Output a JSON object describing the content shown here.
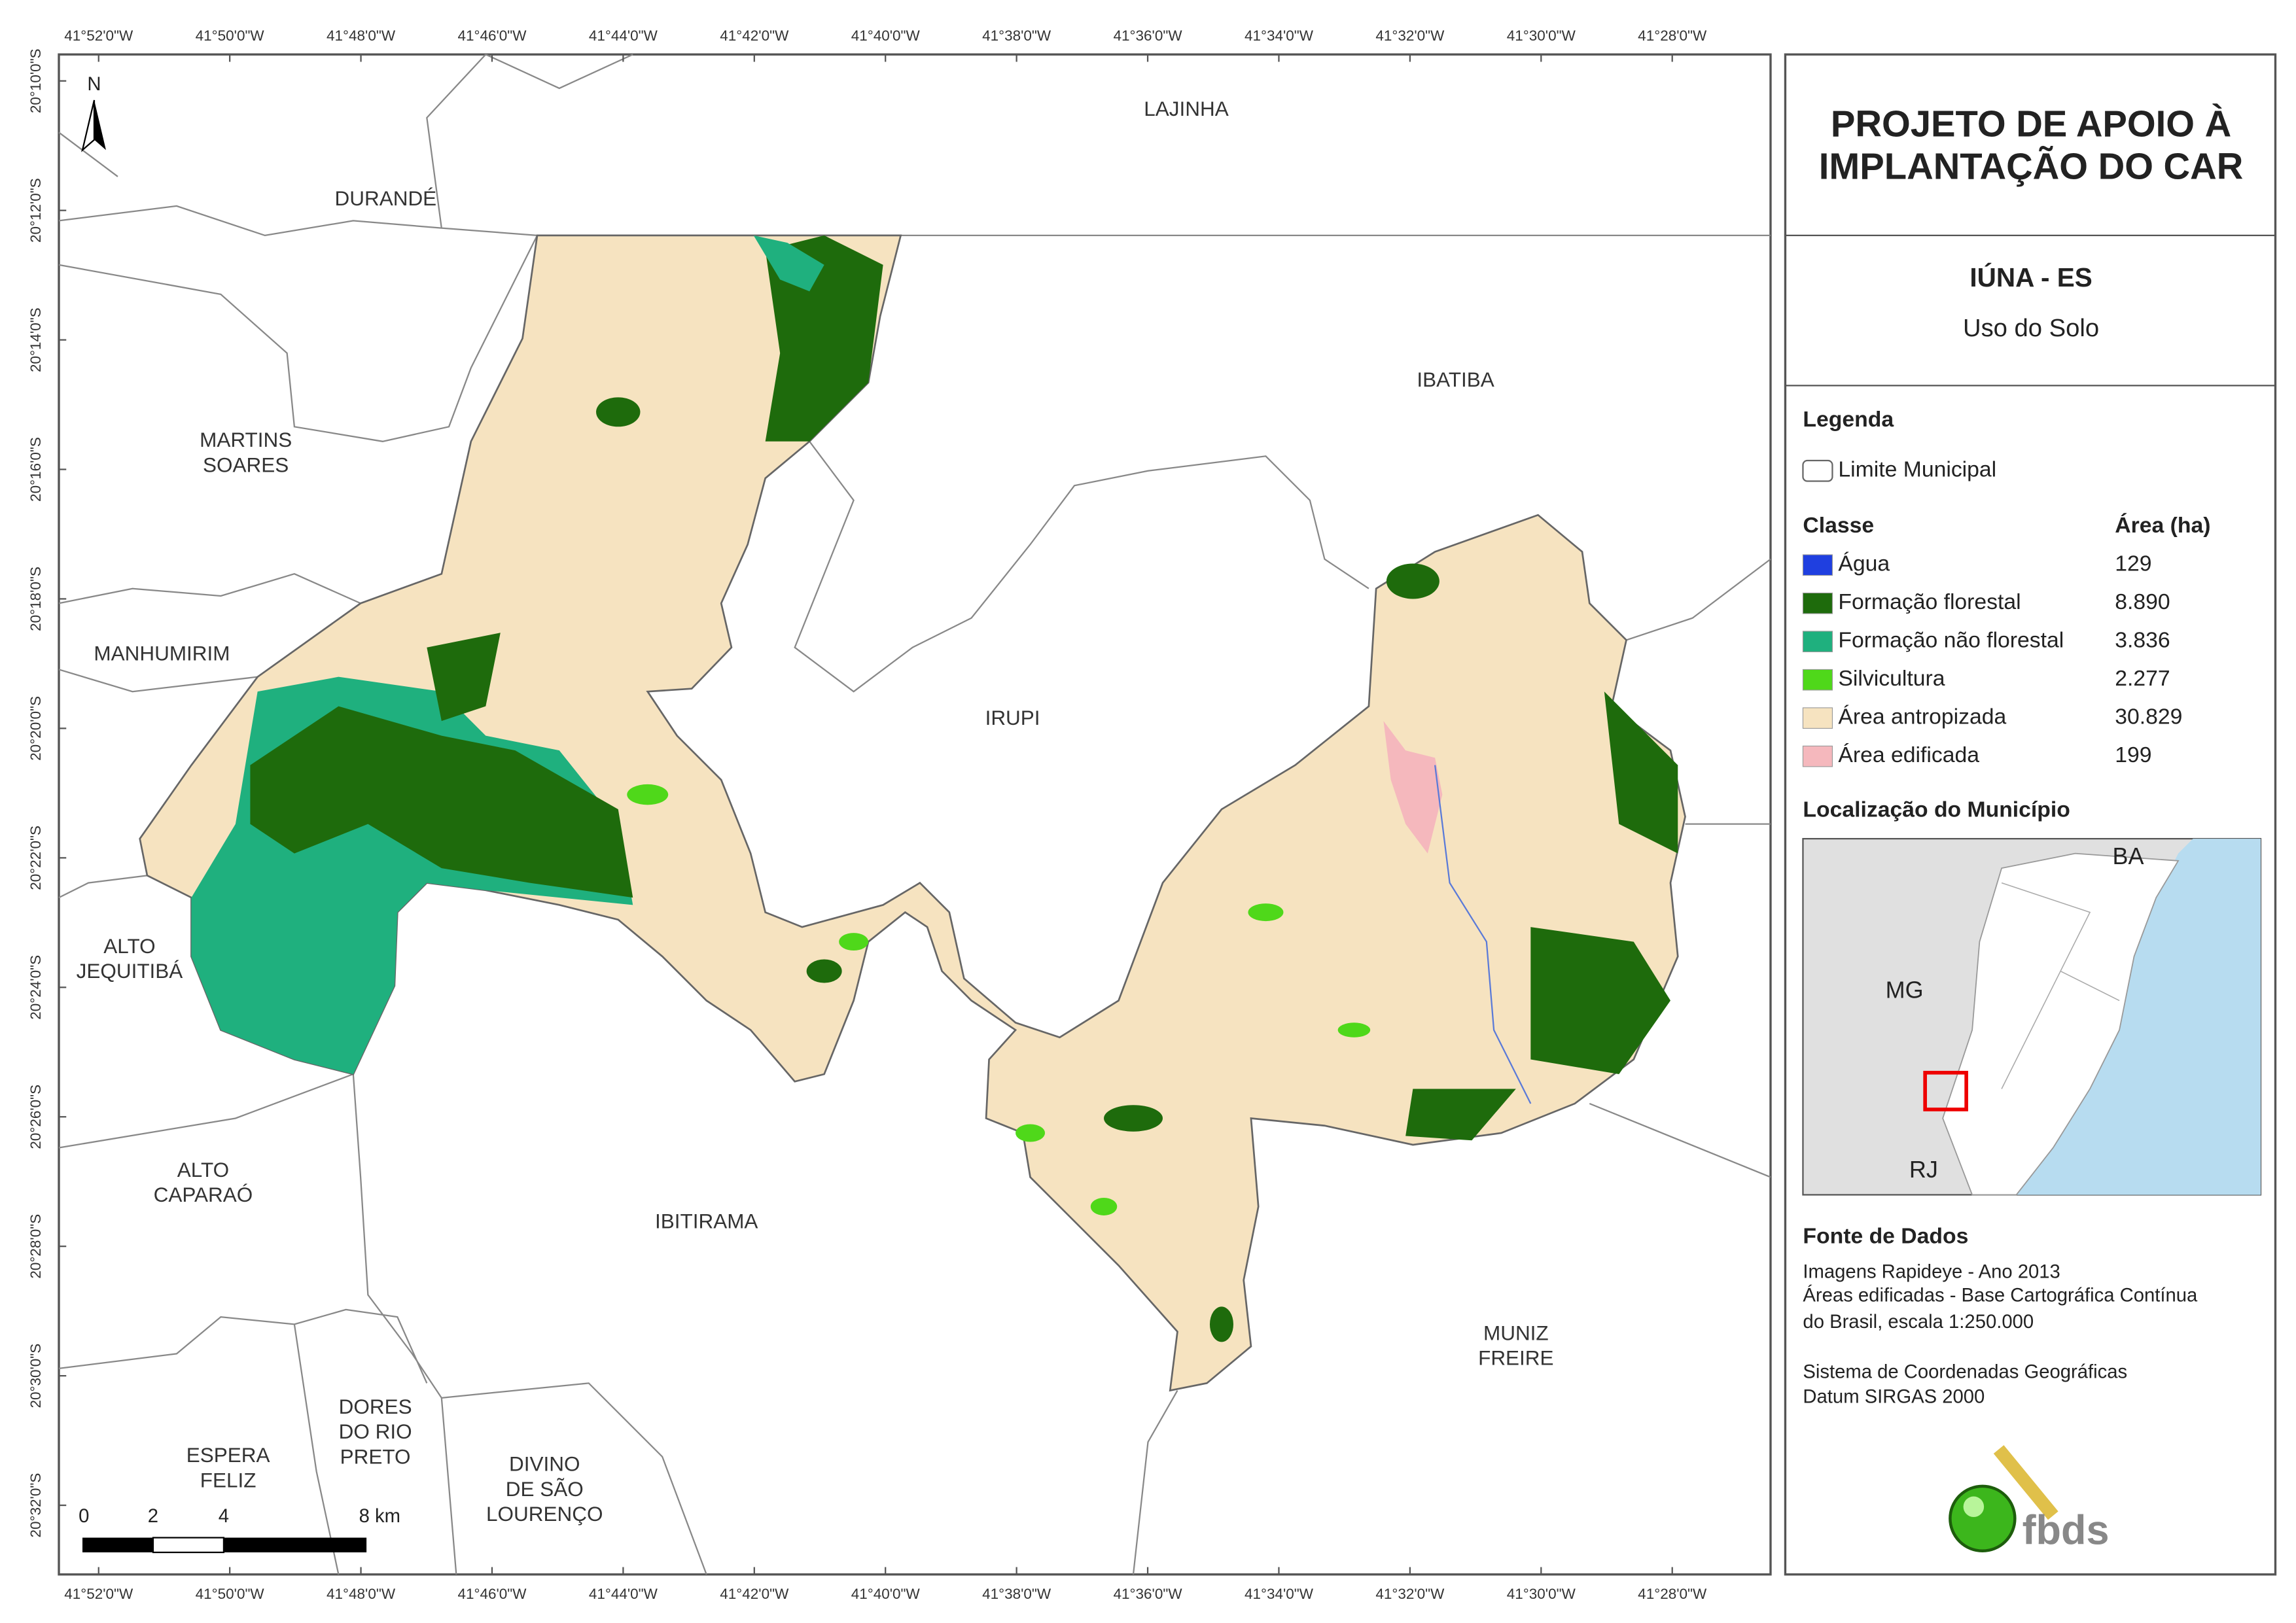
{
  "map": {
    "lon_ticks": [
      "41°52'0\"W",
      "41°50'0\"W",
      "41°48'0\"W",
      "41°46'0\"W",
      "41°44'0\"W",
      "41°42'0\"W",
      "41°40'0\"W",
      "41°38'0\"W",
      "41°36'0\"W",
      "41°34'0\"W",
      "41°32'0\"W",
      "41°30'0\"W",
      "41°28'0\"W"
    ],
    "lat_ticks": [
      "20°10'0\"S",
      "20°12'0\"S",
      "20°14'0\"S",
      "20°16'0\"S",
      "20°18'0\"S",
      "20°20'0\"S",
      "20°22'0\"S",
      "20°24'0\"S",
      "20°26'0\"S",
      "20°28'0\"S",
      "20°30'0\"S",
      "20°32'0\"S"
    ],
    "municipalities": [
      {
        "lines": [
          "LAJINHA"
        ]
      },
      {
        "lines": [
          "DURANDÉ"
        ]
      },
      {
        "lines": [
          "IBATIBA"
        ]
      },
      {
        "lines": [
          "MARTINS",
          "SOARES"
        ]
      },
      {
        "lines": [
          "MANHUMIRIM"
        ]
      },
      {
        "lines": [
          "IRUPI"
        ]
      },
      {
        "lines": [
          "ALTO",
          "JEQUITIBÁ"
        ]
      },
      {
        "lines": [
          "ALTO",
          "CAPARAÓ"
        ]
      },
      {
        "lines": [
          "IBITIRAMA"
        ]
      },
      {
        "lines": [
          "MUNIZ",
          "FREIRE"
        ]
      },
      {
        "lines": [
          "ESPERA",
          "FELIZ"
        ]
      },
      {
        "lines": [
          "DORES",
          "DO RIO",
          "PRETO"
        ]
      },
      {
        "lines": [
          "DIVINO",
          "DE SÃO",
          "LOURENÇO"
        ]
      }
    ],
    "north": "N",
    "scale_bar": [
      "0",
      "2",
      "4",
      "8 km"
    ]
  },
  "panel": {
    "title": [
      "PROJETO DE APOIO À",
      "IMPLANTAÇÃO DO CAR"
    ],
    "place": "IÚNA - ES",
    "subtitle": "Uso do Solo",
    "legend": {
      "heading": "Legenda",
      "boundary": "Limite Municipal",
      "class_header": "Classe",
      "area_header": "Área (ha)",
      "classes": [
        {
          "name": "Água",
          "color": "#1f3fe0",
          "area": "129"
        },
        {
          "name": "Formação florestal",
          "color": "#1e6b0c",
          "area": "8.890"
        },
        {
          "name": "Formação não florestal",
          "color": "#1fb07e",
          "area": "3.836"
        },
        {
          "name": "Silvicultura",
          "color": "#4fd81a",
          "area": "2.277"
        },
        {
          "name": "Área antropizada",
          "color": "#f6e3c0",
          "area": "30.829"
        },
        {
          "name": "Área edificada",
          "color": "#f5b8bd",
          "area": "199"
        }
      ]
    },
    "location": {
      "heading": "Localização do Município",
      "labels": [
        "BA",
        "MG",
        "RJ"
      ]
    },
    "sources": {
      "heading": "Fonte de Dados",
      "lines": [
        "Imagens Rapideye - Ano 2013",
        "Áreas edificadas - Base Cartográfica Contínua",
        "do Brasil, escala 1:250.000",
        "Sistema de Coordenadas Geográficas",
        "Datum SIRGAS 2000"
      ]
    },
    "logo": "fbds"
  }
}
